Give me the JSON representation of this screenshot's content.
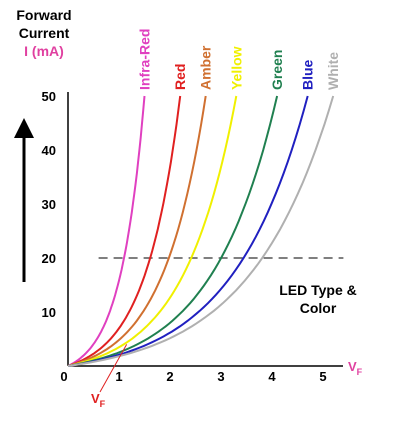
{
  "chart_data": {
    "type": "line",
    "title": "",
    "ylabel_lines": [
      "Forward",
      "Current"
    ],
    "yunit": "I (mA)",
    "xlabel": "V",
    "xlabel_sub": "F",
    "xlim": [
      0,
      5.5
    ],
    "ylim": [
      0,
      55
    ],
    "xticks": [
      0,
      1,
      2,
      3,
      4,
      5
    ],
    "yticks": [
      10,
      20,
      30,
      40,
      50
    ],
    "legend_title": [
      "LED Type &",
      "Color"
    ],
    "annotation": {
      "text": "V",
      "sub": "F",
      "points_to": {
        "x": 1.15,
        "y": 4
      }
    },
    "reference_line": {
      "y": 20,
      "style": "dashed"
    },
    "grid": false,
    "series": [
      {
        "name": "Infra-Red",
        "color": "#e040c0",
        "x_at_50mA": 1.5
      },
      {
        "name": "Red",
        "color": "#e02020",
        "x_at_50mA": 2.2
      },
      {
        "name": "Amber",
        "color": "#d07030",
        "x_at_50mA": 2.7
      },
      {
        "name": "Yellow",
        "color": "#f0f000",
        "x_at_50mA": 3.3
      },
      {
        "name": "Green",
        "color": "#208050",
        "x_at_50mA": 4.1
      },
      {
        "name": "Blue",
        "color": "#2020c0",
        "x_at_50mA": 4.7
      },
      {
        "name": "White",
        "color": "#b0b0b0",
        "x_at_50mA": 5.2
      }
    ]
  }
}
